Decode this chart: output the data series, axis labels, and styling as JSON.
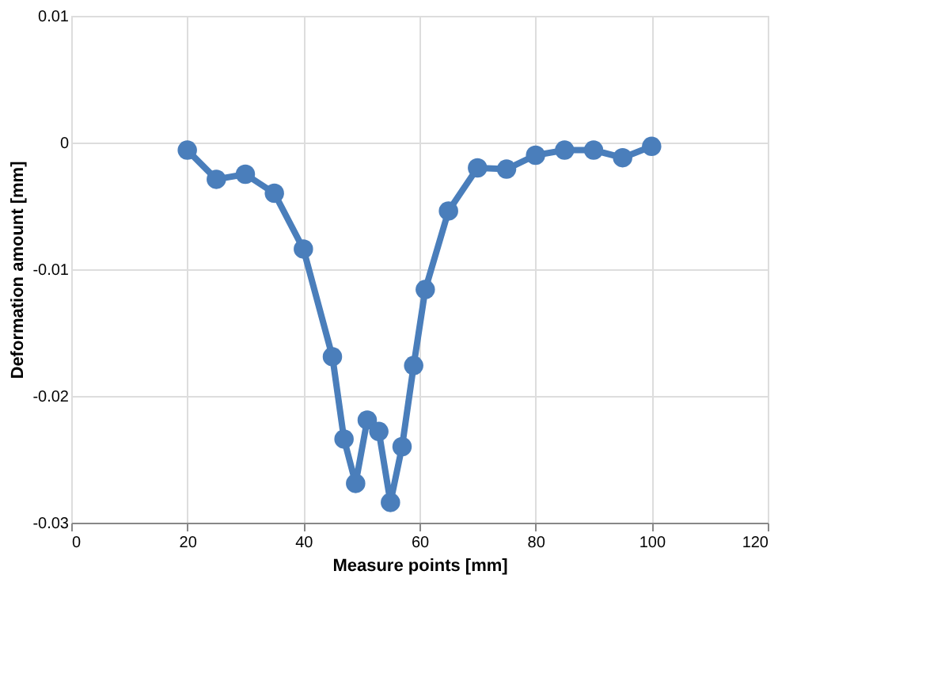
{
  "chart_data": {
    "type": "line",
    "xlabel": "Measure points [mm]",
    "ylabel": "Deformation amount [mm]",
    "x": [
      20,
      25,
      30,
      35,
      40,
      45,
      47,
      49,
      51,
      53,
      55,
      57,
      59,
      61,
      65,
      70,
      75,
      80,
      85,
      90,
      95,
      100
    ],
    "series": [
      {
        "color": "#4a7ebb",
        "values": [
          -0.0006,
          -0.0029,
          -0.0025,
          -0.004,
          -0.0084,
          -0.0169,
          -0.0234,
          -0.0269,
          -0.0219,
          -0.0228,
          -0.0284,
          -0.024,
          -0.0176,
          -0.0116,
          -0.0054,
          -0.002,
          -0.0021,
          -0.001,
          -0.0006,
          -0.0006,
          -0.0012,
          -0.0003
        ]
      }
    ],
    "xlim": [
      0,
      120
    ],
    "xticks": [
      0,
      20,
      40,
      60,
      80,
      100,
      120
    ],
    "ylim": [
      -0.03,
      0.01
    ],
    "yticks": [
      -0.03,
      -0.02,
      -0.01,
      0,
      0.01
    ],
    "grid": true,
    "marker": "circle",
    "line_style": "solid"
  }
}
